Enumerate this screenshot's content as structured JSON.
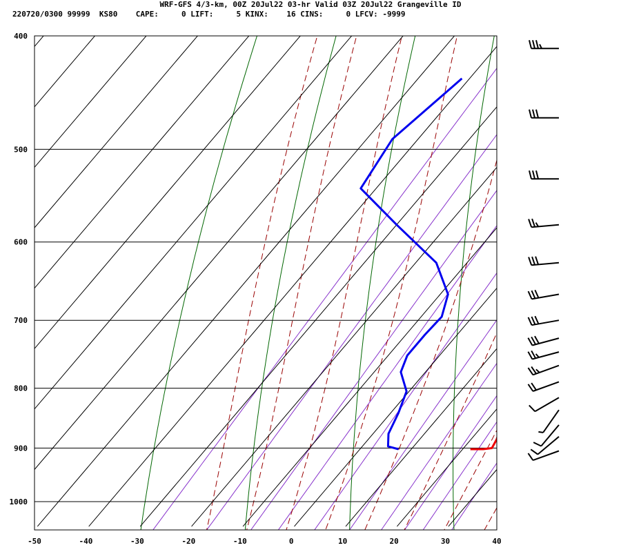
{
  "header": {
    "line1": "WRF-GFS 4/3-km, 00Z 20Jul22 03-hr Valid 03Z 20Jul22 Grangeville ID",
    "line2": "220720/0300 99999  KS80    CAPE:     0 LIFT:     5 KINX:    16 CINS:     0 LFCV: -9999"
  },
  "chart_data": {
    "type": "line",
    "x_axis": {
      "min": -50,
      "max": 40,
      "ticks": [
        -50,
        -40,
        -30,
        -20,
        -10,
        0,
        10,
        20,
        30,
        40
      ]
    },
    "y_axis": {
      "scale": "log-pressure",
      "min": 400,
      "max": 1050,
      "ticks": [
        400,
        500,
        600,
        700,
        800,
        900,
        1000
      ]
    },
    "skew": "skew-T",
    "grid": true,
    "series": [
      {
        "role": "temperature",
        "color": "#ee0000",
        "points": [
          [
            -15.5,
            435
          ],
          [
            -9.5,
            480
          ],
          [
            -4.5,
            535
          ],
          [
            0.5,
            600
          ],
          [
            5,
            660
          ],
          [
            10,
            710
          ],
          [
            16.5,
            775
          ],
          [
            22,
            835
          ],
          [
            25,
            885
          ],
          [
            25.5,
            900
          ],
          [
            24,
            902
          ],
          [
            21.5,
            902
          ]
        ]
      },
      {
        "role": "dewpoint",
        "color": "#0000ee",
        "points": [
          [
            -41.5,
            435
          ],
          [
            -45,
            490
          ],
          [
            -43,
            540
          ],
          [
            -30,
            580
          ],
          [
            -16,
            625
          ],
          [
            -8.5,
            665
          ],
          [
            -6,
            695
          ],
          [
            -6.3,
            720
          ],
          [
            -6.3,
            750
          ],
          [
            -4.8,
            775
          ],
          [
            -0.5,
            805
          ],
          [
            1.5,
            840
          ],
          [
            3,
            875
          ],
          [
            5,
            897
          ],
          [
            7.5,
            902
          ]
        ]
      }
    ],
    "background_lines": {
      "isotherm_color": "#000000",
      "dry_adiabat_color": "#006600",
      "moist_adiabat_color": "#990000",
      "mixing_ratio_color": "#8833cc"
    },
    "wind_barbs": [
      {
        "p": 410,
        "dir": 270,
        "speed": 35
      },
      {
        "p": 470,
        "dir": 270,
        "speed": 30
      },
      {
        "p": 530,
        "dir": 270,
        "speed": 30
      },
      {
        "p": 580,
        "dir": 265,
        "speed": 25
      },
      {
        "p": 625,
        "dir": 265,
        "speed": 30
      },
      {
        "p": 665,
        "dir": 260,
        "speed": 30
      },
      {
        "p": 700,
        "dir": 260,
        "speed": 30
      },
      {
        "p": 725,
        "dir": 255,
        "speed": 30
      },
      {
        "p": 745,
        "dir": 255,
        "speed": 25
      },
      {
        "p": 765,
        "dir": 250,
        "speed": 25
      },
      {
        "p": 790,
        "dir": 250,
        "speed": 20
      },
      {
        "p": 815,
        "dir": 240,
        "speed": 10
      },
      {
        "p": 835,
        "dir": 215,
        "speed": 5
      },
      {
        "p": 860,
        "dir": 220,
        "speed": 10
      },
      {
        "p": 880,
        "dir": 230,
        "speed": 10
      },
      {
        "p": 905,
        "dir": 250,
        "speed": 10
      }
    ]
  }
}
